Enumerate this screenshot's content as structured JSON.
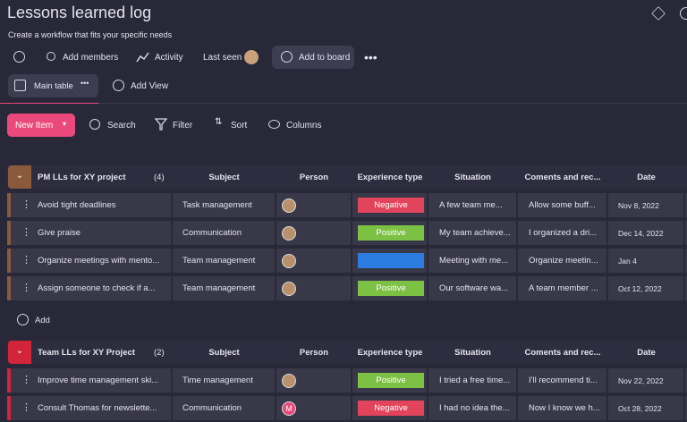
{
  "header": {
    "title": "Lessons learned log",
    "subtitle": "Create a workflow that fits your specific needs"
  },
  "toolbar": {
    "add_members": "Add members",
    "activity": "Activity",
    "last_seen": "Last seen",
    "add_to_board": "Add to board"
  },
  "views": {
    "main": "Main table",
    "add": "Add View"
  },
  "actions": {
    "new_item": "New Item",
    "search": "Search",
    "filter": "Filter",
    "sort": "Sort",
    "columns": "Columns"
  },
  "groups": [
    {
      "name": "PM LLs for XY project",
      "count": "(4)",
      "color": "#8b5a3c",
      "columns": [
        "Subject",
        "Person",
        "Experience type",
        "Situation",
        "Coments and rec...",
        "Date"
      ],
      "rows": [
        {
          "item": "Avoid tight deadlines",
          "subject": "Task management",
          "person": null,
          "experience": {
            "label": "Negative",
            "color": "#e2445c"
          },
          "situation": "A few team me...",
          "comments": "Allow some buff...",
          "date": "Nov 8, 2022"
        },
        {
          "item": "Give praise",
          "subject": "Communication",
          "person": null,
          "experience": {
            "label": "Positive",
            "color": "#7cc143"
          },
          "situation": "My team achieve...",
          "comments": "I organized a dri...",
          "date": "Dec 14, 2022"
        },
        {
          "item": "Organize meetings with mento...",
          "subject": "Team management",
          "person": null,
          "experience": {
            "label": null,
            "color": "#2c7be0"
          },
          "situation": "Meeting with me...",
          "comments": "Organize meetin...",
          "date": "Jan 4"
        },
        {
          "item": "Assign someone to check if a...",
          "subject": "Team management",
          "person": null,
          "experience": {
            "label": "Positive",
            "color": "#7cc143"
          },
          "situation": "Our software wa...",
          "comments": "A team member ...",
          "date": "Oct 12, 2022"
        }
      ],
      "add": "Add"
    },
    {
      "name": "Team LLs for XY Project",
      "count": "(2)",
      "color": "#d3253a",
      "columns": [
        "Subject",
        "Person",
        "Experience type",
        "Situation",
        "Coments and rec...",
        "Date"
      ],
      "rows": [
        {
          "item": "Improve time management ski...",
          "subject": "Time management",
          "person": null,
          "experience": {
            "label": "Positive",
            "color": "#7cc143"
          },
          "situation": "I tried a free time...",
          "comments": "I'll recommend ti...",
          "date": "Nov 22, 2022"
        },
        {
          "item": "Consult Thomas for newslette...",
          "subject": "Communication",
          "person": "M",
          "experience": {
            "label": "Negative",
            "color": "#e2445c"
          },
          "situation": "I had no idea the...",
          "comments": "Now I know we h...",
          "date": "Oct 28, 2022"
        }
      ]
    }
  ]
}
